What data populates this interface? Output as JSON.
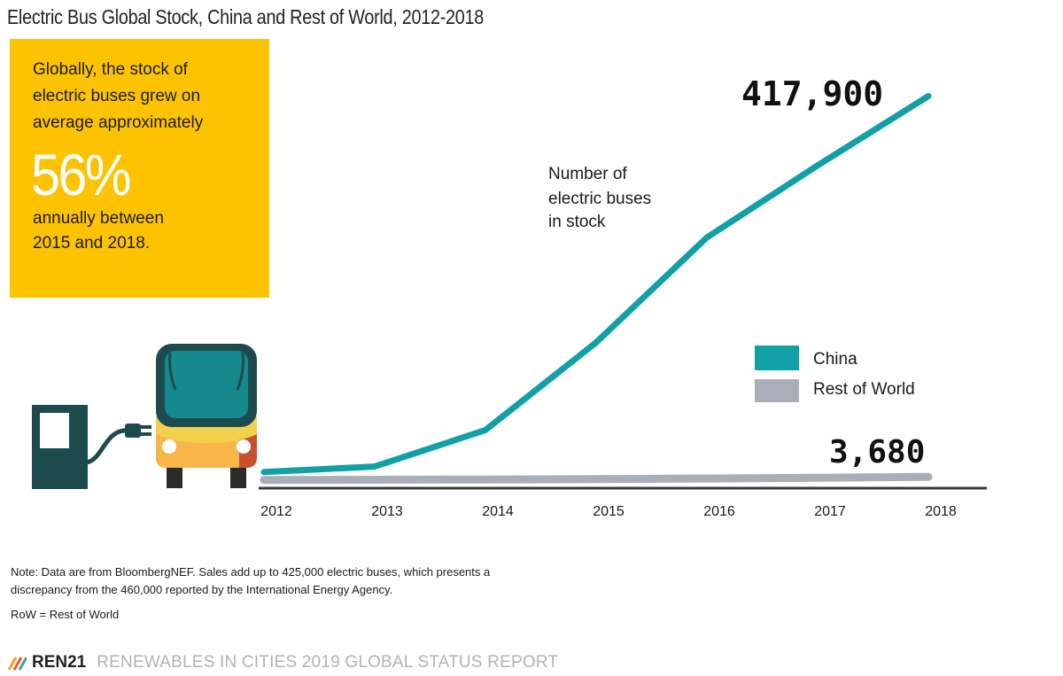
{
  "chart_data": {
    "type": "line",
    "title": "Electric Bus Global Stock, China and Rest of World, 2012-2018",
    "x": [
      "2012",
      "2013",
      "2014",
      "2015",
      "2016",
      "2017",
      "2018"
    ],
    "series": [
      {
        "name": "China",
        "color": "#10a0a6",
        "values": [
          6000,
          12000,
          52000,
          148000,
          263000,
          342000,
          417900
        ]
      },
      {
        "name": "Rest of World",
        "color": "#a9aeb9",
        "values": [
          300,
          500,
          800,
          1200,
          1800,
          2600,
          3680
        ]
      }
    ],
    "ylim": [
      0,
      430000
    ],
    "axis_label": [
      "Number of",
      "electric buses",
      "in stock"
    ],
    "end_labels": {
      "china": "417,900",
      "row": "3,680"
    },
    "legend": [
      "China",
      "Rest of World"
    ],
    "legend_position": "right"
  },
  "callout": {
    "lines_top": [
      "Globally, the stock of",
      "electric buses grew on",
      "average approximately"
    ],
    "highlight": "56%",
    "lines_bottom": [
      "annually between",
      "2015 and 2018."
    ]
  },
  "notes": {
    "line1": "Note: Data are from BloombergNEF. Sales add up to 425,000 electric buses, which presents a",
    "line2": "discrepancy from the 460,000 reported by the International Energy Agency.",
    "line3": "RoW = Rest of World"
  },
  "footer": {
    "brand": "REN21",
    "report": "RENEWABLES IN CITIES 2019 GLOBAL STATUS REPORT"
  },
  "colors": {
    "china": "#10a0a6",
    "row": "#a9aeb9",
    "callout": "#fdc300"
  },
  "icons": [
    "charging-station-icon",
    "electric-bus-icon",
    "ren21-logo-icon"
  ]
}
